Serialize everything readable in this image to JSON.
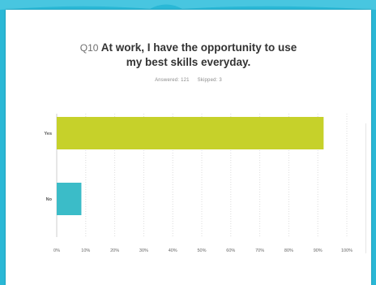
{
  "title_prefix": "Q10",
  "title_line1": "At work, I have the opportunity to use",
  "title_line2": "my best skills everyday.",
  "answered": "Answered: 121",
  "skipped": "Skipped: 3",
  "colors": {
    "background": "#2ab8d6",
    "bar_yes": "#c6d12a",
    "bar_no": "#3bbcc8",
    "grid": "#dcdcdc"
  },
  "chart_data": {
    "type": "bar",
    "orientation": "horizontal",
    "categories": [
      "Yes",
      "No"
    ],
    "values": [
      92,
      8.5
    ],
    "xlim": [
      0,
      100
    ],
    "xticks": [
      "0%",
      "10%",
      "20%",
      "30%",
      "40%",
      "50%",
      "60%",
      "70%",
      "80%",
      "90%",
      "100%"
    ],
    "grid": true
  }
}
